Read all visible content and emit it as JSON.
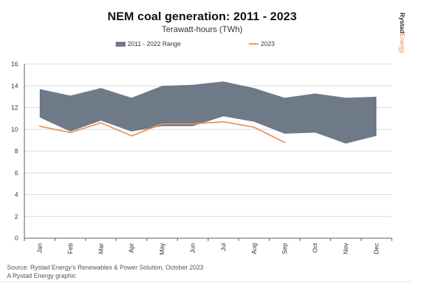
{
  "header": {
    "title": "NEM coal generation: 2011 - 2023",
    "subtitle": "Terawatt-hours (TWh)",
    "brand_bold": "Rystad",
    "brand_accent": "Energy"
  },
  "legend": {
    "range_label": "2011 - 2022 Range",
    "line_label": "2023"
  },
  "footer": {
    "source": "Source: Rystad Energy's Renewables & Power Solution, October 2023",
    "credit": "A Rystad Energy graphic"
  },
  "colors": {
    "range_fill": "#6f7a88",
    "line_2023": "#e8945a",
    "gridline": "#d9d9d9",
    "brand_accent": "#e8894a"
  },
  "chart_data": {
    "type": "area",
    "title": "NEM coal generation: 2011 - 2023",
    "subtitle": "Terawatt-hours (TWh)",
    "categories": [
      "Jan",
      "Feb",
      "Mar",
      "Apr",
      "May",
      "Jun",
      "Jul",
      "Aug",
      "Sep",
      "Oct",
      "Nov",
      "Dec"
    ],
    "yticks": [
      0,
      2,
      4,
      6,
      8,
      10,
      12,
      14,
      16
    ],
    "ylim": [
      0,
      16
    ],
    "grid": true,
    "legend_position": "top",
    "range": {
      "name": "2011 - 2022 Range",
      "upper": [
        13.7,
        13.1,
        13.8,
        12.9,
        14.0,
        14.1,
        14.4,
        13.8,
        12.9,
        13.3,
        12.9,
        13.0
      ],
      "lower": [
        11.1,
        9.8,
        10.8,
        9.8,
        10.3,
        10.3,
        11.2,
        10.7,
        9.6,
        9.7,
        8.7,
        9.4
      ]
    },
    "series": [
      {
        "name": "2023",
        "values": [
          10.3,
          9.7,
          10.6,
          9.4,
          10.5,
          10.5,
          10.7,
          10.2,
          8.8,
          null,
          null,
          null
        ]
      }
    ]
  }
}
